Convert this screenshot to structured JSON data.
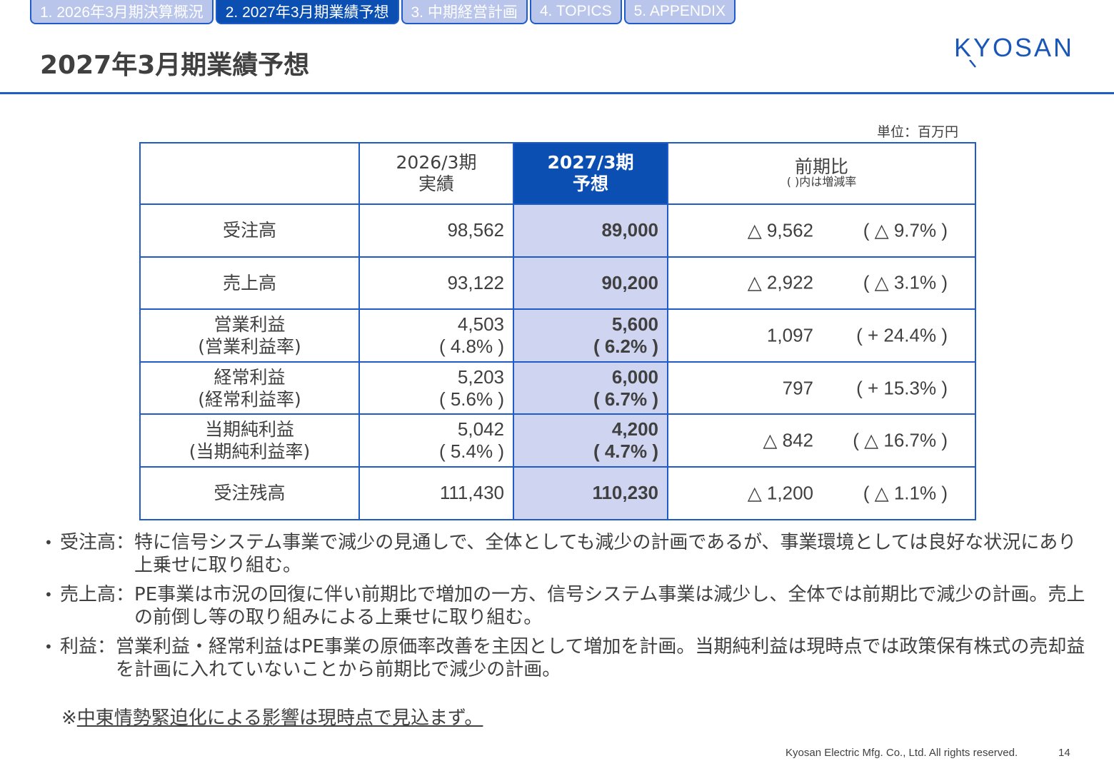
{
  "nav": {
    "tabs": [
      {
        "label": "1. 2026年3月期決算概況",
        "active": false
      },
      {
        "label": "2. 2027年3月期業績予想",
        "active": true
      },
      {
        "label": "3. 中期経営計画",
        "active": false
      },
      {
        "label": "4. TOPICS",
        "active": false
      },
      {
        "label": "5. APPENDIX",
        "active": false
      }
    ]
  },
  "title": "2027年3月期業績予想",
  "logo": "KYOSAN",
  "unit": "単位：百万円",
  "table": {
    "header": {
      "col1_line1": "2026/3期",
      "col1_line2": "実績",
      "col2_line1": "2027/3期",
      "col2_line2": "予想",
      "col3_line1": "前期比",
      "col3_line2": "( )内は増減率"
    },
    "rows": [
      {
        "label": "受注高",
        "label2": "",
        "actual": "98,562",
        "actual2": "",
        "forecast": "89,000",
        "forecast2": "",
        "diff": "△ 9,562",
        "rate": "( △ 9.7% )"
      },
      {
        "label": "売上高",
        "label2": "",
        "actual": "93,122",
        "actual2": "",
        "forecast": "90,200",
        "forecast2": "",
        "diff": "△ 2,922",
        "rate": "( △ 3.1% )"
      },
      {
        "label": "営業利益",
        "label2": "(営業利益率)",
        "actual": "4,503",
        "actual2": "( 4.8% )",
        "forecast": "5,600",
        "forecast2": "( 6.2% )",
        "diff": "1,097",
        "rate": "( + 24.4% )"
      },
      {
        "label": "経常利益",
        "label2": "(経常利益率)",
        "actual": "5,203",
        "actual2": "( 5.6% )",
        "forecast": "6,000",
        "forecast2": "( 6.7% )",
        "diff": "797",
        "rate": "( + 15.3% )"
      },
      {
        "label": "当期純利益",
        "label2": "(当期純利益率)",
        "actual": "5,042",
        "actual2": "( 5.4% )",
        "forecast": "4,200",
        "forecast2": "( 4.7% )",
        "diff": "△ 842",
        "rate": "( △ 16.7% )"
      },
      {
        "label": "受注残高",
        "label2": "",
        "actual": "111,430",
        "actual2": "",
        "forecast": "110,230",
        "forecast2": "",
        "diff": "△ 1,200",
        "rate": "( △ 1.1% )"
      }
    ]
  },
  "notes": [
    {
      "label": "受注高：",
      "text": "特に信号システム事業で減少の見通しで、全体としても減少の計画であるが、事業環境としては良好な状況にあり上乗せに取り組む。"
    },
    {
      "label": "売上高：",
      "text": "PE事業は市況の回復に伴い前期比で増加の一方、信号システム事業は減少し、全体では前期比で減少の計画。売上の前倒し等の取り組みによる上乗せに取り組む。"
    },
    {
      "label": "利益：",
      "text": "営業利益・経常利益はPE事業の原価率改善を主因として増加を計画。当期純利益は現時点では政策保有株式の売却益を計画に入れていないことから前期比で減少の計画。"
    }
  ],
  "footnote": {
    "mark": "※",
    "text": "中東情勢緊迫化による影響は現時点で見込まず。"
  },
  "footer": {
    "copyright": "Kyosan Electric Mfg. Co., Ltd. All rights reserved.",
    "page": "14"
  }
}
